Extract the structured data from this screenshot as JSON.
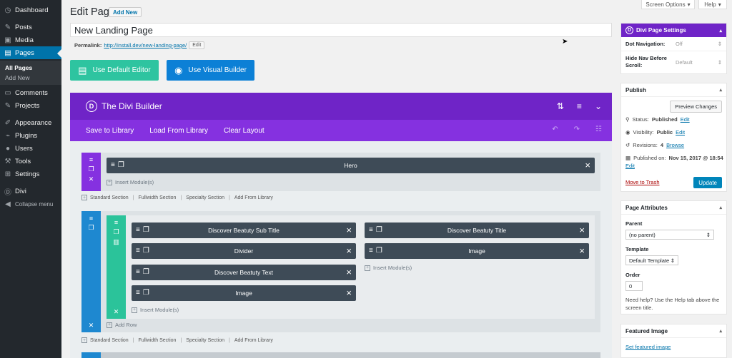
{
  "admin_menu": {
    "items": [
      {
        "label": "Dashboard",
        "icon": "dashboard-icon"
      },
      {
        "label": "Posts",
        "icon": "pin-icon"
      },
      {
        "label": "Media",
        "icon": "media-icon"
      },
      {
        "label": "Pages",
        "icon": "pages-icon"
      },
      {
        "label": "Comments",
        "icon": "comment-icon"
      },
      {
        "label": "Projects",
        "icon": "pin-icon"
      },
      {
        "label": "Appearance",
        "icon": "brush-icon"
      },
      {
        "label": "Plugins",
        "icon": "plug-icon"
      },
      {
        "label": "Users",
        "icon": "user-icon"
      },
      {
        "label": "Tools",
        "icon": "wrench-icon"
      },
      {
        "label": "Settings",
        "icon": "settings-icon"
      },
      {
        "label": "Divi",
        "icon": "divi-icon"
      },
      {
        "label": "Collapse menu",
        "icon": "collapse-icon"
      }
    ],
    "pages_sub": [
      "All Pages",
      "Add New"
    ]
  },
  "top_tabs": {
    "screen_options": "Screen Options",
    "help": "Help"
  },
  "header": {
    "title": "Edit Page",
    "add_new": "Add New"
  },
  "post_title": "New Landing Page",
  "permalink": {
    "label": "Permalink:",
    "url": "http://install.dev/new-landing-page/",
    "edit": "Edit"
  },
  "editor_buttons": {
    "default": "Use Default Editor",
    "visual": "Use Visual Builder"
  },
  "divi_builder": {
    "title": "The Divi Builder",
    "logo_letter": "D",
    "bar": {
      "save": "Save to Library",
      "load": "Load From Library",
      "clear": "Clear Layout"
    },
    "section1": {
      "module": "Hero",
      "insert": "Insert Module(s)"
    },
    "section_links": {
      "standard": "Standard Section",
      "fullwidth": "Fullwidth Section",
      "specialty": "Specialty Section",
      "library": "Add From Library"
    },
    "section2": {
      "left_modules": [
        "Discover Beatuty Sub Title",
        "Divider",
        "Discover Beatuty Text",
        "Image"
      ],
      "right_modules": [
        "Discover Beatuty Title",
        "Image"
      ],
      "insert": "Insert Module(s)",
      "add_row": "Add Row"
    }
  },
  "divi_page_settings": {
    "title": "Divi Page Settings",
    "dot_nav_label": "Dot Navigation:",
    "dot_nav_value": "Off",
    "hide_nav_label_1": "Hide Nav Before",
    "hide_nav_label_2": "Scroll:",
    "hide_nav_value": "Default"
  },
  "publish": {
    "title": "Publish",
    "preview": "Preview Changes",
    "status_label": "Status:",
    "status_value": "Published",
    "visibility_label": "Visibility:",
    "visibility_value": "Public",
    "revisions_label": "Revisions:",
    "revisions_value": "4",
    "browse": "Browse",
    "published_on_label": "Published on:",
    "published_on_value": "Nov 15, 2017 @ 18:54",
    "edit": "Edit",
    "trash": "Move to Trash",
    "update": "Update"
  },
  "page_attributes": {
    "title": "Page Attributes",
    "parent_label": "Parent",
    "parent_value": "(no parent)",
    "template_label": "Template",
    "template_value": "Default Template",
    "order_label": "Order",
    "order_value": "0",
    "help": "Need help? Use the Help tab above the screen title."
  },
  "featured_image": {
    "title": "Featured Image",
    "link": "Set featured image"
  },
  "colors": {
    "divi_purple": "#6f24c7",
    "divi_bar": "#8531e0",
    "row_green": "#2bc39a",
    "section_blue": "#1e88d0",
    "wp_blue": "#0073aa"
  }
}
